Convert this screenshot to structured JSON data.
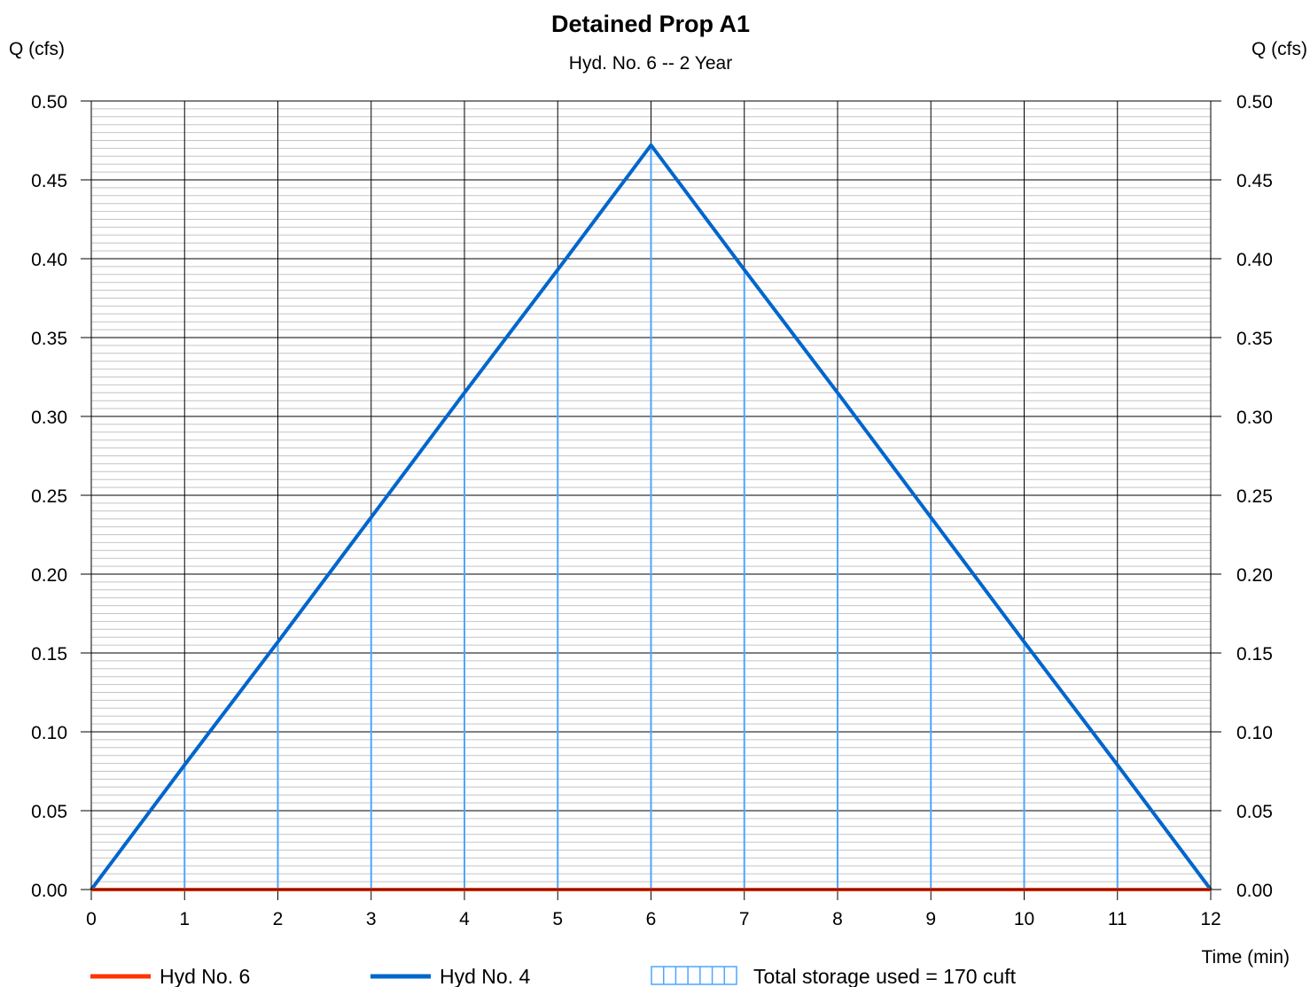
{
  "chart_data": {
    "type": "line",
    "title": "Detained Prop A1",
    "subtitle": "Hyd. No. 6 -- 2 Year",
    "ylabel_left": "Q (cfs)",
    "ylabel_right": "Q (cfs)",
    "xlabel": "Time (min)",
    "xlim": [
      0,
      12
    ],
    "ylim": [
      0,
      0.5
    ],
    "x_ticks": [
      "0",
      "1",
      "2",
      "3",
      "4",
      "5",
      "6",
      "7",
      "8",
      "9",
      "10",
      "11",
      "12"
    ],
    "y_ticks": [
      "0.00",
      "0.05",
      "0.10",
      "0.15",
      "0.20",
      "0.25",
      "0.30",
      "0.35",
      "0.40",
      "0.45",
      "0.50"
    ],
    "grid": true,
    "series": [
      {
        "name": "Hyd No. 6",
        "color": "#ff3300",
        "x": [
          0,
          1,
          2,
          3,
          4,
          5,
          6,
          7,
          8,
          9,
          10,
          11,
          12
        ],
        "values": [
          0,
          0,
          0,
          0,
          0,
          0,
          0,
          0,
          0,
          0,
          0,
          0,
          0
        ]
      },
      {
        "name": "Hyd No. 4",
        "color": "#0066cc",
        "x": [
          0,
          1,
          2,
          3,
          4,
          5,
          6,
          7,
          8,
          9,
          10,
          11,
          12
        ],
        "values": [
          0,
          0.079,
          0.157,
          0.236,
          0.315,
          0.393,
          0.472,
          0.393,
          0.315,
          0.236,
          0.157,
          0.079,
          0
        ]
      }
    ],
    "storage_label": "Total storage used = 170 cuft",
    "storage_color": "#4da6ff",
    "legend_position": "bottom"
  }
}
